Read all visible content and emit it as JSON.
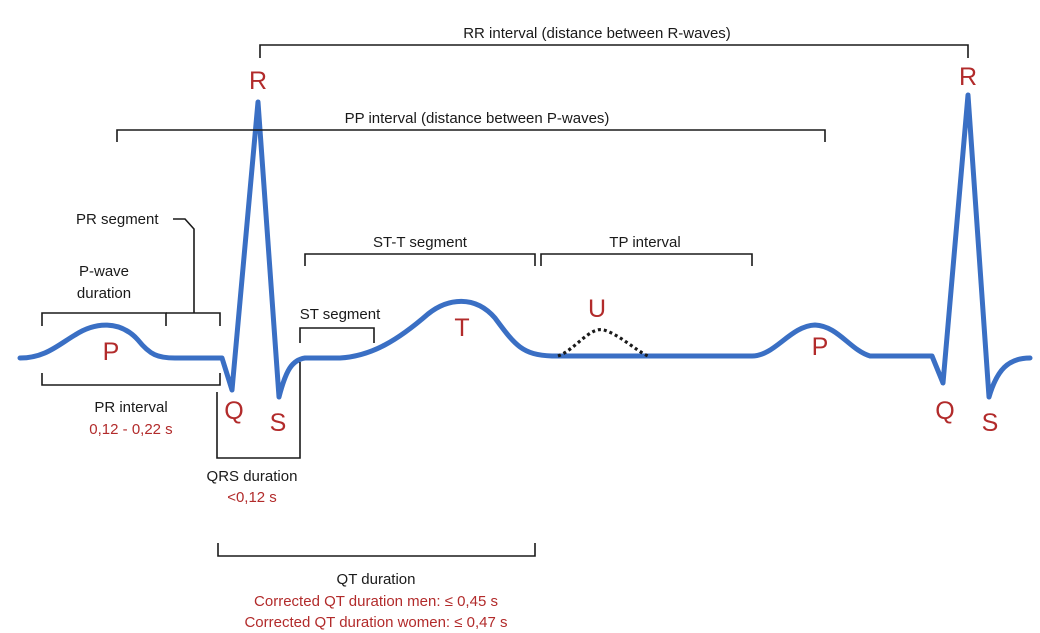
{
  "labels": {
    "rr_interval": "RR interval (distance between R-waves)",
    "pp_interval": "PP interval (distance between P-waves)",
    "pr_segment": "PR segment",
    "p_wave_duration_1": "P-wave",
    "p_wave_duration_2": "duration",
    "st_t_segment": "ST-T segment",
    "tp_interval": "TP interval",
    "st_segment": "ST segment",
    "pr_interval": "PR interval",
    "pr_interval_value": "0,12 - 0,22 s",
    "qrs_duration": "QRS duration",
    "qrs_duration_value": "<0,12 s",
    "qt_duration": "QT duration",
    "qt_corrected_men": "Corrected QT duration men: ≤ 0,45 s",
    "qt_corrected_women": "Corrected QT duration women: ≤ 0,47 s"
  },
  "waves": {
    "p1": "P",
    "q1": "Q",
    "r1": "R",
    "s1": "S",
    "t": "T",
    "u": "U",
    "p2": "P",
    "q2": "Q",
    "r2": "R",
    "s2": "S"
  },
  "colors": {
    "trace": "#3a6fc4",
    "wave_label": "#b22b2b",
    "text": "#1a1a1a"
  }
}
